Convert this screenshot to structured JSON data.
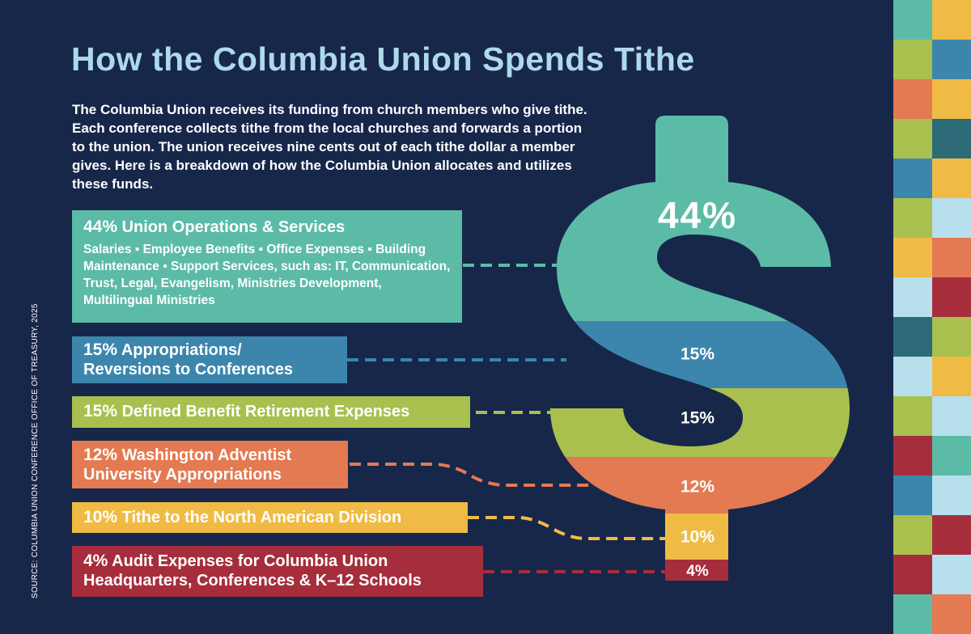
{
  "title": "How the Columbia Union Spends Tithe",
  "intro": "The Columbia Union receives its funding from church members who give tithe. Each conference collects tithe from the local churches and forwards a portion to the union. The union receives nine cents out of each tithe dollar a member gives. Here is a breakdown of how the Columbia Union allocates and utilizes these funds.",
  "source": "SOURCE: COLUMBIA UNION CONFERENCE OFFICE OF TREASURY, 2025",
  "chart_data": {
    "type": "pie",
    "title": "How the Columbia Union Spends Tithe",
    "unit": "%",
    "categories": [
      "Union Operations & Services",
      "Appropriations/ Reversions to Conferences",
      "Defined Benefit Retirement Expenses",
      "Washington Adventist University Appropriations",
      "Tithe to the North American Division",
      "Audit Expenses for Columbia Union Headquarters, Conferences & K–12 Schools"
    ],
    "values": [
      44,
      15,
      15,
      12,
      10,
      4
    ],
    "labels": [
      "44%",
      "15%",
      "15%",
      "12%",
      "10%",
      "4%"
    ],
    "colors": [
      "#5cbba7",
      "#3c86ad",
      "#a9c04f",
      "#e37a52",
      "#f0bb45",
      "#a62e3c"
    ]
  },
  "items": [
    {
      "pct": "44%",
      "label": " Union Operations & Services",
      "desc": "Salaries ▪ Employee Benefits ▪ Office Expenses ▪ Building Maintenance ▪ Support Services, such as: IT, Communication, Trust, Legal, Evangelism, Ministries Development, Multilingual Ministries"
    },
    {
      "pct": "15%",
      "label": " Appropriations/",
      "label2": "Reversions to Conferences"
    },
    {
      "pct": "15%",
      "label": " Defined Benefit Retirement Expenses"
    },
    {
      "pct": "12%",
      "label": " Washington Adventist",
      "label2": "University Appropriations"
    },
    {
      "pct": "10%",
      "label": " Tithe to the North American Division"
    },
    {
      "pct": "4%",
      "label": " Audit Expenses for Columbia Union",
      "label2": "Headquarters, Conferences & K–12 Schools"
    }
  ],
  "stripe_colors": [
    [
      "#5cbba7",
      "#f0bb45"
    ],
    [
      "#a9c04f",
      "#3c86ad"
    ],
    [
      "#e37a52",
      "#f0bb45"
    ],
    [
      "#a9c04f",
      "#2d6a78"
    ],
    [
      "#3c86ad",
      "#f0bb45"
    ],
    [
      "#a9c04f",
      "#b7dfec"
    ],
    [
      "#f0bb45",
      "#e37a52"
    ],
    [
      "#b7dfec",
      "#a62e3c"
    ],
    [
      "#2d6a78",
      "#a9c04f"
    ],
    [
      "#b7dfec",
      "#f0bb45"
    ],
    [
      "#a9c04f",
      "#b7dfec"
    ],
    [
      "#a62e3c",
      "#5cbba7"
    ],
    [
      "#3c86ad",
      "#b7dfec"
    ],
    [
      "#a9c04f",
      "#a62e3c"
    ],
    [
      "#a62e3c",
      "#b7dfec"
    ],
    [
      "#5cbba7",
      "#e37a52"
    ]
  ]
}
